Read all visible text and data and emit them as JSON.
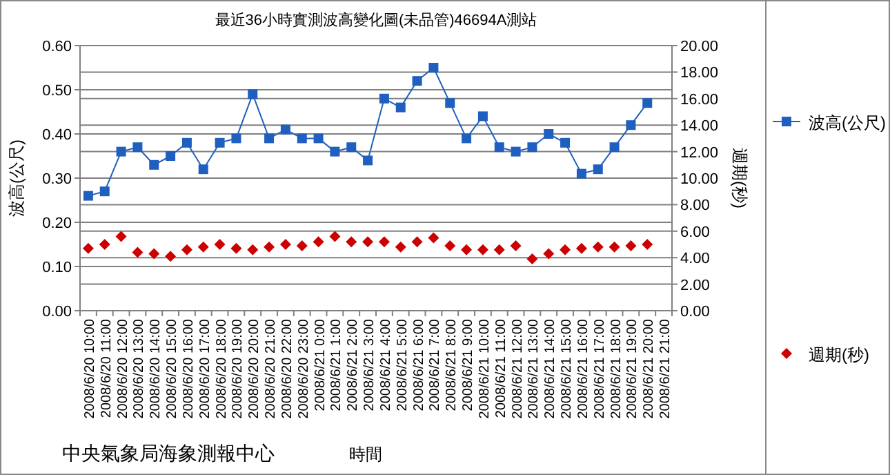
{
  "chart_data": {
    "type": "line",
    "title": "最近36小時實測波高變化圖(未品管)46694A測站",
    "categories": [
      "2008/6/20 10:00",
      "2008/6/20 11:00",
      "2008/6/20 12:00",
      "2008/6/20 13:00",
      "2008/6/20 14:00",
      "2008/6/20 15:00",
      "2008/6/20 16:00",
      "2008/6/20 17:00",
      "2008/6/20 18:00",
      "2008/6/20 19:00",
      "2008/6/20 20:00",
      "2008/6/20 21:00",
      "2008/6/20 22:00",
      "2008/6/20 23:00",
      "2008/6/21 0:00",
      "2008/6/21 1:00",
      "2008/6/21 2:00",
      "2008/6/21 3:00",
      "2008/6/21 4:00",
      "2008/6/21 5:00",
      "2008/6/21 6:00",
      "2008/6/21 7:00",
      "2008/6/21 8:00",
      "2008/6/21 9:00",
      "2008/6/21 10:00",
      "2008/6/21 11:00",
      "2008/6/21 12:00",
      "2008/6/21 13:00",
      "2008/6/21 14:00",
      "2008/6/21 15:00",
      "2008/6/21 16:00",
      "2008/6/21 17:00",
      "2008/6/21 18:00",
      "2008/6/21 19:00",
      "2008/6/21 20:00",
      "2008/6/21 21:00"
    ],
    "series": [
      {
        "name": "波高(公尺)",
        "type": "line",
        "marker": "square",
        "color": "#1f5fbf",
        "values": [
          0.26,
          0.27,
          0.36,
          0.37,
          0.33,
          0.35,
          0.38,
          0.32,
          0.38,
          0.39,
          0.49,
          0.39,
          0.41,
          0.39,
          0.39,
          0.36,
          0.37,
          0.34,
          0.48,
          0.46,
          0.52,
          0.55,
          0.47,
          0.39,
          0.44,
          0.37,
          0.36,
          0.37,
          0.4,
          0.38,
          0.31,
          0.32,
          0.37,
          0.42,
          0.47,
          null
        ]
      },
      {
        "name": "週期(秒)",
        "type": "scatter",
        "marker": "diamond",
        "axis": "y2",
        "color": "#cc0000",
        "values": [
          4.7,
          5.0,
          5.6,
          4.4,
          4.3,
          4.1,
          4.6,
          4.8,
          5.0,
          4.7,
          4.6,
          4.8,
          5.0,
          4.9,
          5.2,
          5.6,
          5.2,
          5.2,
          5.2,
          4.8,
          5.2,
          5.5,
          4.9,
          4.6,
          4.6,
          4.6,
          4.9,
          3.9,
          4.3,
          4.6,
          4.7,
          4.8,
          4.8,
          4.9,
          5.0,
          null
        ]
      }
    ],
    "ylabel": "波高(公尺)",
    "y2label": "週期(秒)",
    "xlabel": "時間",
    "ylim": [
      0,
      0.6
    ],
    "yticks": [
      {
        "value": 0,
        "label": "0.00"
      },
      {
        "value": 0.1,
        "label": "0.10"
      },
      {
        "value": 0.2,
        "label": "0.20"
      },
      {
        "value": 0.3,
        "label": "0.30"
      },
      {
        "value": 0.4,
        "label": "0.40"
      },
      {
        "value": 0.5,
        "label": "0.50"
      },
      {
        "value": 0.6,
        "label": "0.60"
      }
    ],
    "y2lim": [
      0,
      20
    ],
    "y2ticks": [
      {
        "value": 0,
        "label": "0.00"
      },
      {
        "value": 2,
        "label": "2.00"
      },
      {
        "value": 4,
        "label": "4.00"
      },
      {
        "value": 6,
        "label": "6.00"
      },
      {
        "value": 8,
        "label": "8.00"
      },
      {
        "value": 10,
        "label": "10.00"
      },
      {
        "value": 12,
        "label": "12.00"
      },
      {
        "value": 14,
        "label": "14.00"
      },
      {
        "value": 16,
        "label": "16.00"
      },
      {
        "value": 18,
        "label": "18.00"
      },
      {
        "value": 20,
        "label": "20.00"
      }
    ],
    "grid": true,
    "legend": "right",
    "annotations": [
      "中央氣象局海象測報中心"
    ]
  }
}
